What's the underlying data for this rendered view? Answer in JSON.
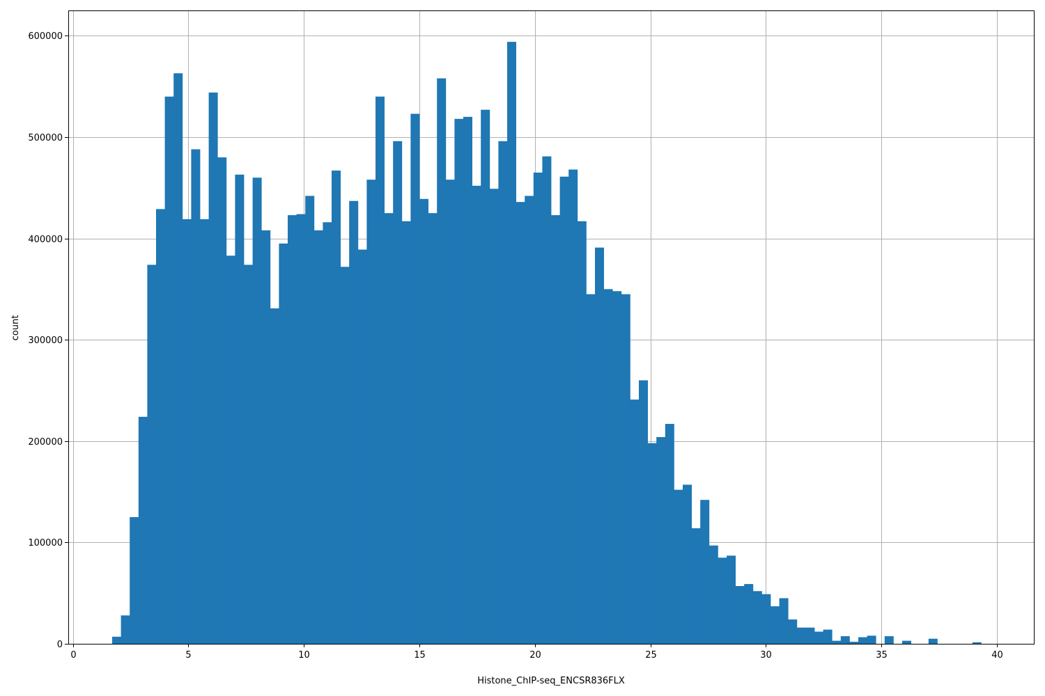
{
  "chart_data": {
    "type": "bar",
    "xlabel": "Histone_ChIP-seq_ENCSR836FLX",
    "ylabel": "count",
    "xlim": [
      -0.2,
      41.6
    ],
    "ylim": [
      0,
      625000
    ],
    "grid": true,
    "bar_color": "#1f77b4",
    "bin_width": 0.38,
    "x_ticks": [
      0,
      5,
      10,
      15,
      20,
      25,
      30,
      35,
      40
    ],
    "y_ticks": [
      0,
      100000,
      200000,
      300000,
      400000,
      500000,
      600000
    ],
    "x": [
      1.7,
      2.08,
      2.46,
      2.84,
      3.22,
      3.6,
      3.98,
      4.36,
      4.74,
      5.12,
      5.5,
      5.88,
      6.26,
      6.64,
      7.02,
      7.4,
      7.78,
      8.16,
      8.54,
      8.92,
      9.3,
      9.68,
      10.06,
      10.44,
      10.82,
      11.2,
      11.58,
      11.96,
      12.34,
      12.72,
      13.1,
      13.48,
      13.86,
      14.24,
      14.62,
      15.0,
      15.38,
      15.76,
      16.14,
      16.52,
      16.9,
      17.28,
      17.66,
      18.04,
      18.42,
      18.8,
      19.18,
      19.56,
      19.94,
      20.32,
      20.7,
      21.08,
      21.46,
      21.84,
      22.22,
      22.6,
      22.98,
      23.36,
      23.74,
      24.12,
      24.5,
      24.88,
      25.26,
      25.64,
      26.02,
      26.4,
      26.78,
      27.16,
      27.54,
      27.92,
      28.3,
      28.68,
      29.06,
      29.44,
      29.82,
      30.2,
      30.58,
      30.96,
      31.34,
      31.72,
      32.1,
      32.48,
      32.86,
      33.24,
      33.62,
      34.0,
      34.38,
      34.76,
      35.14,
      35.52,
      35.9,
      36.28,
      36.66,
      37.04,
      37.42,
      37.8,
      38.18,
      38.56,
      38.94,
      39.32
    ],
    "values": [
      7000,
      28000,
      125000,
      224000,
      374000,
      429000,
      540000,
      563000,
      419000,
      488000,
      419000,
      544000,
      480000,
      383000,
      463000,
      374000,
      460000,
      408000,
      331000,
      395000,
      423000,
      424000,
      442000,
      408000,
      416000,
      467000,
      372000,
      437000,
      389000,
      458000,
      540000,
      425000,
      496000,
      417000,
      523000,
      439000,
      425000,
      558000,
      458000,
      518000,
      520000,
      452000,
      527000,
      449000,
      496000,
      594000,
      436000,
      442000,
      465000,
      481000,
      423000,
      461000,
      468000,
      417000,
      345000,
      391000,
      350000,
      348000,
      345000,
      241000,
      260000,
      198000,
      204000,
      217000,
      152000,
      157000,
      114000,
      142000,
      97000,
      85000,
      87000,
      57000,
      59000,
      52000,
      49000,
      37000,
      45000,
      24000,
      16000,
      16000,
      12000,
      14000,
      3000,
      7500,
      2000,
      6500,
      8000,
      0,
      7500,
      0,
      3000,
      0,
      0,
      5000,
      0,
      0,
      0,
      0,
      1500,
      0
    ]
  }
}
